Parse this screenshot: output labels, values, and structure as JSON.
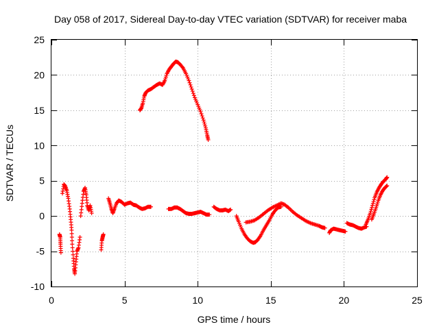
{
  "chart_data": {
    "type": "scatter",
    "title": "Day 058 of 2017, Sidereal Day-to-day VTEC variation (SDTVAR) for receiver maba",
    "xlabel": "GPS time / hours",
    "ylabel": "SDTVAR / TECUs",
    "xlim": [
      0,
      25
    ],
    "ylim": [
      -10,
      25
    ],
    "xticks": [
      0,
      5,
      10,
      15,
      20,
      25
    ],
    "yticks": [
      -10,
      -5,
      0,
      5,
      10,
      15,
      20,
      25
    ],
    "xtick_labels": [
      "0",
      "5",
      "10",
      "15",
      "20",
      "25"
    ],
    "ytick_labels": [
      "-10",
      "-5",
      "0",
      "5",
      "10",
      "15",
      "20",
      "25"
    ],
    "grid": true,
    "marker": "+",
    "series_color": "#ff0000",
    "segments": [
      [
        [
          0.55,
          -2.6
        ],
        [
          0.6,
          -3.0
        ],
        [
          0.62,
          -4.0
        ],
        [
          0.65,
          -5.2
        ]
      ],
      [
        [
          0.75,
          3.2
        ],
        [
          0.85,
          4.5
        ],
        [
          0.95,
          4.2
        ],
        [
          1.05,
          3.6
        ],
        [
          1.15,
          2.5
        ],
        [
          1.25,
          1.0
        ],
        [
          1.32,
          -0.5
        ],
        [
          1.38,
          -2.0
        ],
        [
          1.42,
          -4.0
        ],
        [
          1.5,
          -6.0
        ],
        [
          1.55,
          -7.5
        ],
        [
          1.6,
          -8.2
        ],
        [
          1.68,
          -6.5
        ],
        [
          1.75,
          -5.0
        ],
        [
          1.85,
          -4.5
        ],
        [
          1.95,
          -3.0
        ]
      ],
      [
        [
          2.0,
          0.0
        ],
        [
          2.1,
          1.8
        ],
        [
          2.2,
          3.5
        ],
        [
          2.3,
          4.0
        ],
        [
          2.38,
          3.0
        ],
        [
          2.45,
          1.5
        ],
        [
          2.55,
          0.8
        ],
        [
          2.65,
          1.5
        ],
        [
          2.75,
          0.4
        ]
      ],
      [
        [
          3.4,
          -4.8
        ],
        [
          3.45,
          -3.5
        ],
        [
          3.5,
          -3.0
        ],
        [
          3.55,
          -2.6
        ]
      ],
      [
        [
          3.9,
          2.5
        ],
        [
          4.0,
          1.8
        ],
        [
          4.1,
          1.0
        ],
        [
          4.2,
          0.4
        ],
        [
          4.3,
          1.0
        ],
        [
          4.45,
          1.8
        ],
        [
          4.6,
          2.2
        ],
        [
          4.8,
          2.0
        ],
        [
          5.0,
          1.6
        ],
        [
          5.2,
          1.8
        ],
        [
          5.4,
          1.9
        ],
        [
          5.6,
          1.6
        ],
        [
          5.8,
          1.5
        ],
        [
          6.0,
          1.2
        ],
        [
          6.2,
          1.0
        ],
        [
          6.4,
          1.1
        ],
        [
          6.6,
          1.3
        ],
        [
          6.8,
          1.3
        ]
      ],
      [
        [
          6.05,
          15.0
        ],
        [
          6.15,
          15.3
        ],
        [
          6.25,
          16.0
        ],
        [
          6.35,
          17.0
        ],
        [
          6.45,
          17.5
        ],
        [
          6.6,
          17.8
        ],
        [
          6.8,
          18.0
        ],
        [
          7.0,
          18.3
        ],
        [
          7.2,
          18.6
        ],
        [
          7.4,
          18.8
        ],
        [
          7.6,
          18.6
        ],
        [
          7.75,
          19.2
        ],
        [
          7.9,
          20.2
        ],
        [
          8.05,
          20.8
        ],
        [
          8.2,
          21.2
        ],
        [
          8.35,
          21.6
        ],
        [
          8.5,
          21.9
        ],
        [
          8.65,
          21.8
        ],
        [
          8.8,
          21.5
        ],
        [
          9.0,
          21.0
        ],
        [
          9.2,
          20.2
        ],
        [
          9.4,
          19.2
        ],
        [
          9.6,
          18.0
        ],
        [
          9.8,
          16.8
        ],
        [
          10.0,
          15.8
        ],
        [
          10.2,
          14.8
        ],
        [
          10.4,
          13.6
        ],
        [
          10.55,
          12.5
        ],
        [
          10.65,
          11.5
        ],
        [
          10.72,
          10.8
        ]
      ],
      [
        [
          8.0,
          1.0
        ],
        [
          8.2,
          1.0
        ],
        [
          8.4,
          1.2
        ],
        [
          8.6,
          1.2
        ],
        [
          8.8,
          1.0
        ],
        [
          9.0,
          0.7
        ],
        [
          9.2,
          0.4
        ],
        [
          9.4,
          0.3
        ],
        [
          9.6,
          0.3
        ],
        [
          9.8,
          0.4
        ],
        [
          10.0,
          0.5
        ],
        [
          10.2,
          0.6
        ],
        [
          10.4,
          0.4
        ],
        [
          10.6,
          0.2
        ],
        [
          10.8,
          0.2
        ]
      ],
      [
        [
          11.1,
          1.3
        ],
        [
          11.3,
          1.0
        ],
        [
          11.5,
          0.8
        ],
        [
          11.7,
          0.8
        ],
        [
          11.9,
          0.9
        ],
        [
          12.1,
          0.7
        ],
        [
          12.25,
          0.9
        ]
      ],
      [
        [
          12.65,
          0.0
        ],
        [
          12.8,
          -0.8
        ],
        [
          13.0,
          -1.8
        ],
        [
          13.2,
          -2.6
        ],
        [
          13.4,
          -3.2
        ],
        [
          13.6,
          -3.6
        ],
        [
          13.8,
          -3.8
        ],
        [
          13.95,
          -3.7
        ],
        [
          14.1,
          -3.4
        ],
        [
          14.3,
          -2.8
        ],
        [
          14.5,
          -2.0
        ],
        [
          14.7,
          -1.3
        ],
        [
          14.9,
          -0.6
        ],
        [
          15.1,
          0.2
        ],
        [
          15.3,
          0.8
        ],
        [
          15.5,
          1.2
        ],
        [
          15.7,
          1.3
        ]
      ],
      [
        [
          13.3,
          -0.9
        ],
        [
          13.6,
          -0.8
        ],
        [
          13.9,
          -0.6
        ],
        [
          14.2,
          -0.2
        ],
        [
          14.5,
          0.3
        ],
        [
          14.8,
          0.8
        ],
        [
          15.1,
          1.2
        ],
        [
          15.4,
          1.5
        ],
        [
          15.7,
          1.8
        ],
        [
          15.95,
          1.6
        ],
        [
          16.2,
          1.2
        ],
        [
          16.5,
          0.6
        ],
        [
          16.8,
          0.1
        ],
        [
          17.1,
          -0.3
        ],
        [
          17.4,
          -0.7
        ],
        [
          17.7,
          -1.0
        ],
        [
          18.0,
          -1.2
        ],
        [
          18.3,
          -1.4
        ],
        [
          18.5,
          -1.6
        ],
        [
          18.7,
          -1.7
        ]
      ],
      [
        [
          19.0,
          -2.4
        ],
        [
          19.1,
          -2.0
        ],
        [
          19.3,
          -1.8
        ],
        [
          19.5,
          -1.9
        ],
        [
          19.7,
          -2.0
        ],
        [
          19.9,
          -2.1
        ],
        [
          20.1,
          -2.2
        ]
      ],
      [
        [
          20.2,
          -1.0
        ],
        [
          20.4,
          -1.2
        ],
        [
          20.6,
          -1.3
        ],
        [
          20.8,
          -1.5
        ],
        [
          21.0,
          -1.7
        ],
        [
          21.2,
          -1.8
        ],
        [
          21.4,
          -1.6
        ],
        [
          21.55,
          -1.5
        ]
      ],
      [
        [
          21.5,
          -1.2
        ],
        [
          21.65,
          -0.5
        ],
        [
          21.8,
          0.4
        ],
        [
          21.95,
          1.5
        ],
        [
          22.1,
          2.6
        ],
        [
          22.25,
          3.4
        ],
        [
          22.4,
          4.0
        ],
        [
          22.55,
          4.5
        ],
        [
          22.7,
          4.9
        ],
        [
          22.85,
          5.2
        ],
        [
          22.95,
          5.5
        ]
      ],
      [
        [
          21.9,
          -0.5
        ],
        [
          22.05,
          0.3
        ],
        [
          22.2,
          1.2
        ],
        [
          22.35,
          2.2
        ],
        [
          22.5,
          3.0
        ],
        [
          22.65,
          3.6
        ],
        [
          22.8,
          4.0
        ],
        [
          22.95,
          4.3
        ]
      ]
    ]
  }
}
